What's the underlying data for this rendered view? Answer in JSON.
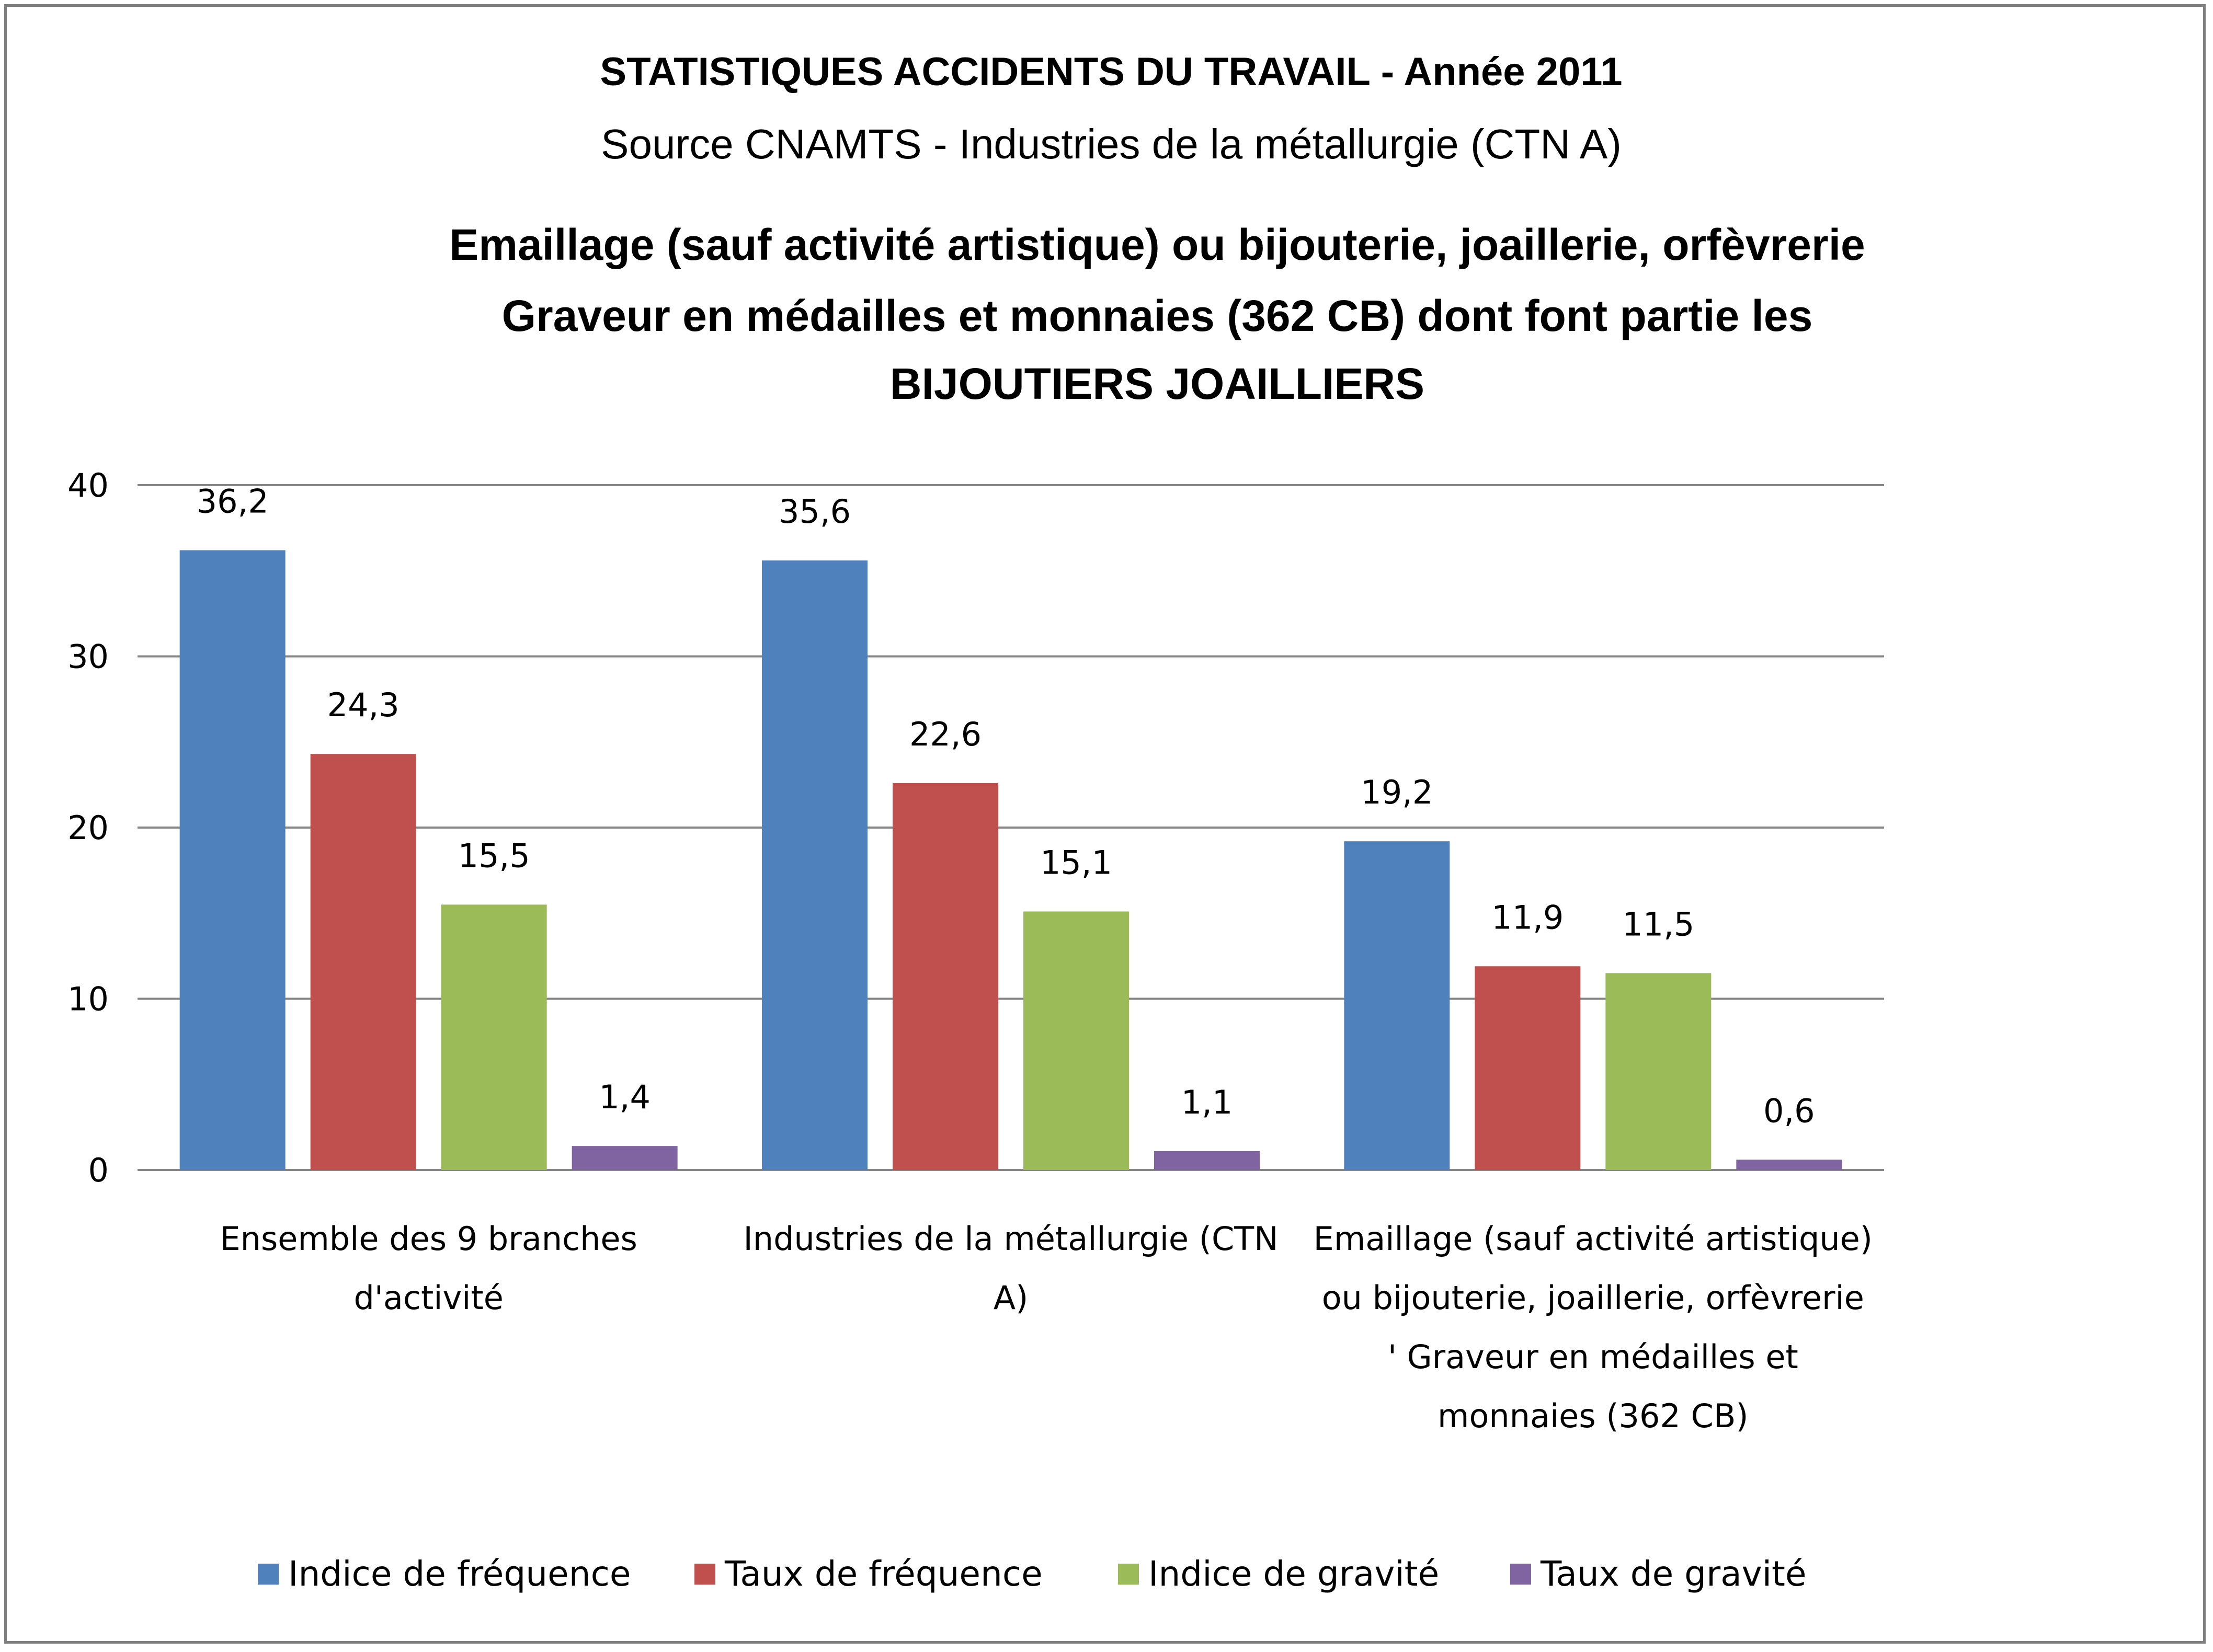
{
  "chart_data": {
    "type": "bar",
    "title": "STATISTIQUES ACCIDENTS DU TRAVAIL - Année 2011",
    "source": "Source CNAMTS - Industries de la métallurgie (CTN A)",
    "subtitle_lines": [
      "Emaillage (sauf activité artistique) ou bijouterie, joaillerie, orfèvrerie",
      "Graveur en médailles et monnaies (362 CB) dont font partie les",
      "BIJOUTIERS JOAILLIERS"
    ],
    "categories": [
      [
        "Ensemble des 9 branches",
        "d'activité"
      ],
      [
        "Industries de la métallurgie (CTN",
        "A)"
      ],
      [
        "Emaillage (sauf activité artistique)",
        "ou bijouterie, joaillerie, orfèvrerie",
        "' Graveur en médailles et",
        "monnaies (362 CB)"
      ]
    ],
    "series": [
      {
        "name": "Indice de fréquence",
        "color": "#4f81bd",
        "values": [
          36.2,
          35.6,
          19.2
        ],
        "labels": [
          "36,2",
          "35,6",
          "19,2"
        ]
      },
      {
        "name": "Taux de fréquence",
        "color": "#c0504d",
        "values": [
          24.3,
          22.6,
          11.9
        ],
        "labels": [
          "24,3",
          "22,6",
          "11,9"
        ]
      },
      {
        "name": "Indice de gravité",
        "color": "#9bbb59",
        "values": [
          15.5,
          15.1,
          11.5
        ],
        "labels": [
          "15,5",
          "15,1",
          "11,5"
        ]
      },
      {
        "name": "Taux de gravité",
        "color": "#8064a2",
        "values": [
          1.4,
          1.1,
          0.6
        ],
        "labels": [
          "1,4",
          "1,1",
          "0,6"
        ]
      }
    ],
    "ylim": [
      0,
      40
    ],
    "yticks": [
      0,
      10,
      20,
      30,
      40
    ],
    "grid": true,
    "legend_position": "bottom"
  }
}
